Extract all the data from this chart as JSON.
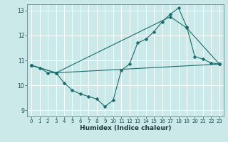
{
  "xlabel": "Humidex (Indice chaleur)",
  "background_color": "#cce9e9",
  "grid_color": "#ffffff",
  "line_color": "#1a6b6b",
  "xlim_min": -0.5,
  "xlim_max": 23.5,
  "ylim_min": 8.75,
  "ylim_max": 13.25,
  "yticks": [
    9,
    10,
    11,
    12,
    13
  ],
  "xticks": [
    0,
    1,
    2,
    3,
    4,
    5,
    6,
    7,
    8,
    9,
    10,
    11,
    12,
    13,
    14,
    15,
    16,
    17,
    18,
    19,
    20,
    21,
    22,
    23
  ],
  "series1_x": [
    0,
    1,
    2,
    3,
    4,
    5,
    6,
    7,
    8,
    9,
    10,
    11,
    12,
    13,
    14,
    15,
    16,
    17,
    18,
    19,
    20,
    21,
    22,
    23
  ],
  "series1_y": [
    10.8,
    10.7,
    10.5,
    10.5,
    10.1,
    9.8,
    9.65,
    9.55,
    9.45,
    9.15,
    9.4,
    10.6,
    10.85,
    11.7,
    11.85,
    12.15,
    12.55,
    12.85,
    13.1,
    12.35,
    11.15,
    11.05,
    10.9,
    10.85
  ],
  "series2_x": [
    0,
    3,
    23
  ],
  "series2_y": [
    10.8,
    10.5,
    10.85
  ],
  "series3_x": [
    0,
    3,
    17,
    19,
    23
  ],
  "series3_y": [
    10.8,
    10.5,
    12.75,
    12.3,
    10.85
  ]
}
